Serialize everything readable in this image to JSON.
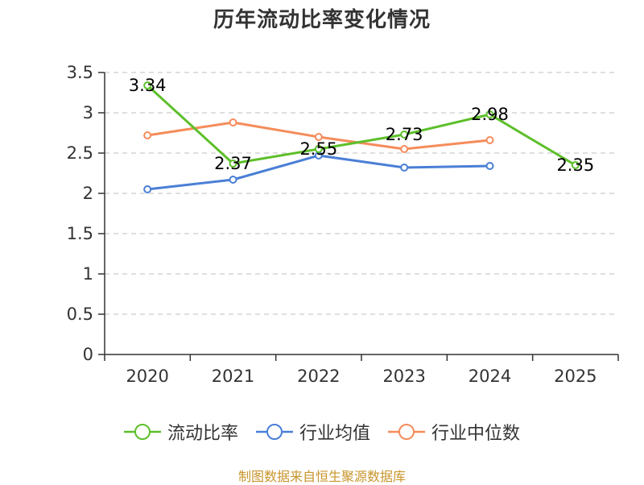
{
  "chart_data": {
    "type": "line",
    "title": "历年流动比率变化情况",
    "categories": [
      "2020",
      "2021",
      "2022",
      "2023",
      "2024",
      "2025"
    ],
    "ylim": [
      0,
      3.5
    ],
    "yticks": [
      "0",
      "0.5",
      "1",
      "1.5",
      "2",
      "2.5",
      "3",
      "3.5"
    ],
    "ytick_values": [
      0,
      0.5,
      1,
      1.5,
      2,
      2.5,
      3,
      3.5
    ],
    "grid": true,
    "legend_position": "bottom",
    "series": [
      {
        "name": "流动比率",
        "color": "#5dbf2a",
        "values": [
          3.34,
          2.37,
          2.55,
          2.73,
          2.98,
          2.35
        ],
        "labels": [
          "3.34",
          "2.37",
          "2.55",
          "2.73",
          "2.98",
          "2.35"
        ],
        "show_labels": true
      },
      {
        "name": "行业均值",
        "color": "#4a7fd6",
        "values": [
          2.05,
          2.17,
          2.47,
          2.32,
          2.34,
          null
        ],
        "show_labels": false
      },
      {
        "name": "行业中位数",
        "color": "#f58c5a",
        "values": [
          2.72,
          2.88,
          2.7,
          2.55,
          2.66,
          null
        ],
        "show_labels": false
      }
    ]
  },
  "source": "制图数据来自恒生聚源数据库"
}
